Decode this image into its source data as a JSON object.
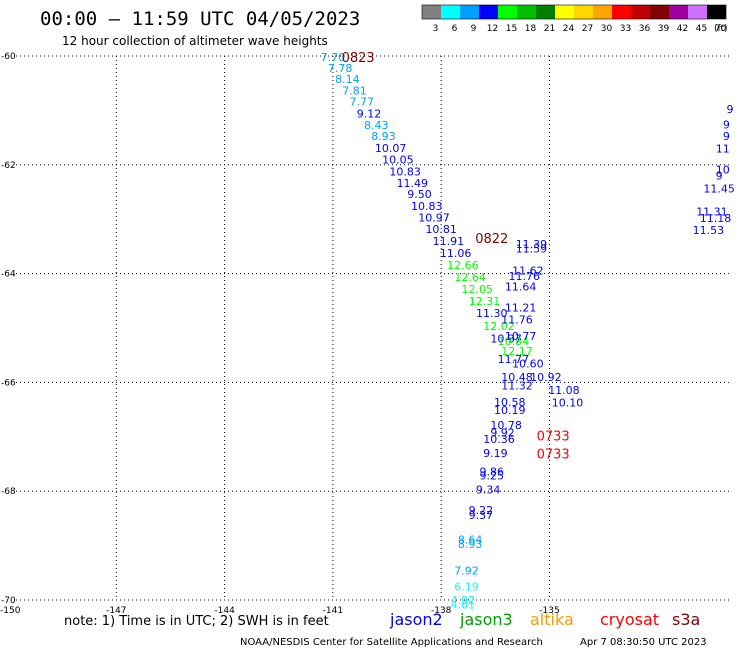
{
  "header": {
    "title": "00:00 – 11:59 UTC 04/05/2023",
    "subtitle": "12 hour collection of altimeter wave heights"
  },
  "legend_bar": {
    "unit": "(ft)",
    "bins": [
      {
        "label": "3",
        "color": "#808080"
      },
      {
        "label": "6",
        "color": "#00ffff"
      },
      {
        "label": "9",
        "color": "#00a0ff"
      },
      {
        "label": "12",
        "color": "#0000ff"
      },
      {
        "label": "15",
        "color": "#00ff00"
      },
      {
        "label": "18",
        "color": "#00c000"
      },
      {
        "label": "21",
        "color": "#008000"
      },
      {
        "label": "24",
        "color": "#ffff00"
      },
      {
        "label": "27",
        "color": "#ffd700"
      },
      {
        "label": "30",
        "color": "#ffa500"
      },
      {
        "label": "33",
        "color": "#ff0000"
      },
      {
        "label": "36",
        "color": "#c00000"
      },
      {
        "label": "39",
        "color": "#800000"
      },
      {
        "label": "42",
        "color": "#a000a0"
      },
      {
        "label": "45",
        "color": "#d070ff"
      },
      {
        "label": "70",
        "color": "#000000"
      }
    ]
  },
  "footer": {
    "note": "note:  1) Time is in UTC;  2) SWH is in feet",
    "satellites": [
      {
        "name": "jason2",
        "color": "#0000ff"
      },
      {
        "name": "jason3",
        "color": "#00a000"
      },
      {
        "name": "altika",
        "color": "#ff9900"
      },
      {
        "name": "cryosat",
        "color": "#ff0000"
      },
      {
        "name": "s3a",
        "color": "#800000"
      }
    ],
    "credit": "NOAA/NESDIS Center for Satellite Applications and Research",
    "generated": "Apr  7 08:30:50 UTC 2023"
  },
  "chart_data": {
    "type": "scatter",
    "xlim": [
      -150,
      -130
    ],
    "ylim": [
      -70,
      -60
    ],
    "x_ticks": [
      {
        "value": -150,
        "label": "-150"
      },
      {
        "value": -147,
        "label": "-147"
      },
      {
        "value": -144,
        "label": "-144"
      },
      {
        "value": -141,
        "label": "-141"
      },
      {
        "value": -138,
        "label": "-138"
      },
      {
        "value": -135,
        "label": "-135"
      }
    ],
    "y_ticks": [
      {
        "value": -60,
        "label": "-60"
      },
      {
        "value": -62,
        "label": "-62"
      },
      {
        "value": -64,
        "label": "-64"
      },
      {
        "value": -66,
        "label": "-66"
      },
      {
        "value": -68,
        "label": "-68"
      },
      {
        "value": -70,
        "label": "-70"
      }
    ],
    "grid": true,
    "time_labels": [
      {
        "label": "0823",
        "lon": -140.3,
        "lat": -60.02,
        "color": "#800000"
      },
      {
        "label": "0822",
        "lon": -136.6,
        "lat": -63.35,
        "color": "#800000"
      },
      {
        "label": "0733",
        "lon": -134.9,
        "lat": -66.98,
        "color": "#ff0000"
      },
      {
        "label": "0733",
        "lon": -134.9,
        "lat": -67.31,
        "color": "#ff0000"
      }
    ],
    "series": [
      {
        "name": "s3a",
        "points": [
          {
            "lon": -141.0,
            "lat": -60.02,
            "swh": 7.7,
            "color": "#00a0ff"
          },
          {
            "lon": -140.8,
            "lat": -60.22,
            "swh": 7.78,
            "color": "#00a0ff"
          },
          {
            "lon": -140.6,
            "lat": -60.42,
            "swh": 8.14,
            "color": "#00a0ff"
          },
          {
            "lon": -140.4,
            "lat": -60.63,
            "swh": 7.81,
            "color": "#00a0ff"
          },
          {
            "lon": -140.2,
            "lat": -60.84,
            "swh": 7.77,
            "color": "#00a0ff"
          },
          {
            "lon": -140.0,
            "lat": -61.06,
            "swh": 9.12,
            "color": "#0000ff"
          },
          {
            "lon": -139.8,
            "lat": -61.27,
            "swh": 8.43,
            "color": "#00a0ff"
          },
          {
            "lon": -139.6,
            "lat": -61.47,
            "swh": 8.93,
            "color": "#00a0ff"
          },
          {
            "lon": -139.4,
            "lat": -61.69,
            "swh": 10.07,
            "color": "#0000ff"
          },
          {
            "lon": -139.2,
            "lat": -61.9,
            "swh": 10.05,
            "color": "#0000ff"
          },
          {
            "lon": -139.0,
            "lat": -62.12,
            "swh": 10.83,
            "color": "#0000ff"
          },
          {
            "lon": -138.8,
            "lat": -62.33,
            "swh": 11.49,
            "color": "#0000ff"
          },
          {
            "lon": -138.6,
            "lat": -62.54,
            "swh": 9.5,
            "color": "#0000ff"
          },
          {
            "lon": -138.4,
            "lat": -62.76,
            "swh": 10.83,
            "color": "#0000ff"
          },
          {
            "lon": -138.2,
            "lat": -62.97,
            "swh": 10.97,
            "color": "#0000ff"
          },
          {
            "lon": -138.0,
            "lat": -63.18,
            "swh": 10.81,
            "color": "#0000ff"
          },
          {
            "lon": -137.8,
            "lat": -63.4,
            "swh": 11.91,
            "color": "#0000ff"
          },
          {
            "lon": -137.6,
            "lat": -63.62,
            "swh": 11.06,
            "color": "#0000ff"
          },
          {
            "lon": -137.4,
            "lat": -63.84,
            "swh": 12.66,
            "color": "#00ff00"
          },
          {
            "lon": -137.2,
            "lat": -64.06,
            "swh": 12.64,
            "color": "#00ff00"
          },
          {
            "lon": -137.0,
            "lat": -64.28,
            "swh": 12.05,
            "color": "#00ff00"
          },
          {
            "lon": -136.8,
            "lat": -64.5,
            "swh": 12.31,
            "color": "#00ff00"
          },
          {
            "lon": -136.6,
            "lat": -64.72,
            "swh": 11.3,
            "color": "#0000ff"
          },
          {
            "lon": -136.4,
            "lat": -64.96,
            "swh": 12.02,
            "color": "#00ff00"
          },
          {
            "lon": -136.2,
            "lat": -65.19,
            "swh": 10.37,
            "color": "#0000ff"
          },
          {
            "lon": -136.0,
            "lat": -65.24,
            "swh": 10.84,
            "color": "#00ff00"
          },
          {
            "lon": -135.9,
            "lat": -65.42,
            "swh": 12.17,
            "color": "#00ff00"
          },
          {
            "lon": -136.0,
            "lat": -65.57,
            "swh": 11.77,
            "color": "#0000ff"
          },
          {
            "lon": -135.6,
            "lat": -65.65,
            "swh": 10.6,
            "color": "#0000ff"
          },
          {
            "lon": -135.9,
            "lat": -65.9,
            "swh": 10.48,
            "color": "#0000ff"
          },
          {
            "lon": -135.9,
            "lat": -66.06,
            "swh": 11.32,
            "color": "#0000ff"
          },
          {
            "lon": -135.1,
            "lat": -65.9,
            "swh": 10.92,
            "color": "#0000ff"
          },
          {
            "lon": -134.6,
            "lat": -66.14,
            "swh": 11.08,
            "color": "#0000ff"
          },
          {
            "lon": -134.5,
            "lat": -66.37,
            "swh": 10.1,
            "color": "#0000ff"
          },
          {
            "lon": -136.1,
            "lat": -66.36,
            "swh": 10.58,
            "color": "#0000ff"
          },
          {
            "lon": -136.1,
            "lat": -66.51,
            "swh": 10.19,
            "color": "#0000ff"
          },
          {
            "lon": -136.2,
            "lat": -66.78,
            "swh": 10.78,
            "color": "#0000ff"
          },
          {
            "lon": -136.3,
            "lat": -66.92,
            "swh": 9.92,
            "color": "#0000ff"
          },
          {
            "lon": -136.4,
            "lat": -67.04,
            "swh": 10.36,
            "color": "#0000ff"
          },
          {
            "lon": -136.5,
            "lat": -67.3,
            "swh": 9.19,
            "color": "#0000ff"
          },
          {
            "lon": -136.6,
            "lat": -67.64,
            "swh": 9.86,
            "color": "#0000ff"
          },
          {
            "lon": -136.6,
            "lat": -67.71,
            "swh": 9.25,
            "color": "#0000ff"
          },
          {
            "lon": -136.7,
            "lat": -67.97,
            "swh": 9.34,
            "color": "#0000ff"
          },
          {
            "lon": -136.9,
            "lat": -68.35,
            "swh": 9.22,
            "color": "#0000ff"
          },
          {
            "lon": -136.9,
            "lat": -68.44,
            "swh": 9.37,
            "color": "#0000ff"
          },
          {
            "lon": -137.2,
            "lat": -68.89,
            "swh": 8.64,
            "color": "#00a0ff"
          },
          {
            "lon": -137.2,
            "lat": -68.97,
            "swh": 8.93,
            "color": "#00a0ff"
          },
          {
            "lon": -137.3,
            "lat": -69.46,
            "swh": 7.92,
            "color": "#00a0ff"
          },
          {
            "lon": -137.3,
            "lat": -69.75,
            "swh": 6.19,
            "color": "#00ffff"
          },
          {
            "lon": -137.4,
            "lat": -70.0,
            "swh": 4.92,
            "color": "#00ffff"
          },
          {
            "lon": -137.4,
            "lat": -70.08,
            "swh": 4.01,
            "color": "#00ffff"
          }
        ]
      },
      {
        "name": "cryosat",
        "points": [
          {
            "lon": -135.5,
            "lat": -63.46,
            "swh": 11.39,
            "color": "#0000ff"
          },
          {
            "lon": -135.5,
            "lat": -63.54,
            "swh": 11.59,
            "color": "#0000ff"
          },
          {
            "lon": -135.6,
            "lat": -63.94,
            "swh": 11.62,
            "color": "#0000ff"
          },
          {
            "lon": -135.7,
            "lat": -64.04,
            "swh": 11.76,
            "color": "#0000ff"
          },
          {
            "lon": -135.8,
            "lat": -64.24,
            "swh": 11.64,
            "color": "#0000ff"
          },
          {
            "lon": -135.8,
            "lat": -64.62,
            "swh": 11.21,
            "color": "#0000ff"
          },
          {
            "lon": -135.9,
            "lat": -64.84,
            "swh": 11.76,
            "color": "#0000ff"
          },
          {
            "lon": -135.8,
            "lat": -65.15,
            "swh": 10.77,
            "color": "#0000ff"
          }
        ]
      },
      {
        "name": "jason3",
        "points": [
          {
            "lon": -130.0,
            "lat": -60.97,
            "swh": 9,
            "color": "#0000ff"
          },
          {
            "lon": -130.1,
            "lat": -61.26,
            "swh": 9,
            "color": "#0000ff"
          },
          {
            "lon": -130.1,
            "lat": -61.47,
            "swh": 9,
            "color": "#0000ff"
          },
          {
            "lon": -130.2,
            "lat": -61.7,
            "swh": 11,
            "color": "#0000ff"
          },
          {
            "lon": -130.2,
            "lat": -62.09,
            "swh": 10,
            "color": "#0000ff"
          },
          {
            "lon": -130.3,
            "lat": -62.2,
            "swh": 9,
            "color": "#0000ff"
          },
          {
            "lon": -130.3,
            "lat": -62.44,
            "swh": 11.45,
            "color": "#0000ff"
          },
          {
            "lon": -130.5,
            "lat": -62.86,
            "swh": 11.31,
            "color": "#0000ff"
          },
          {
            "lon": -130.4,
            "lat": -62.98,
            "swh": 11.18,
            "color": "#0000ff"
          },
          {
            "lon": -130.6,
            "lat": -63.2,
            "swh": 11.53,
            "color": "#0000ff"
          }
        ]
      }
    ]
  }
}
